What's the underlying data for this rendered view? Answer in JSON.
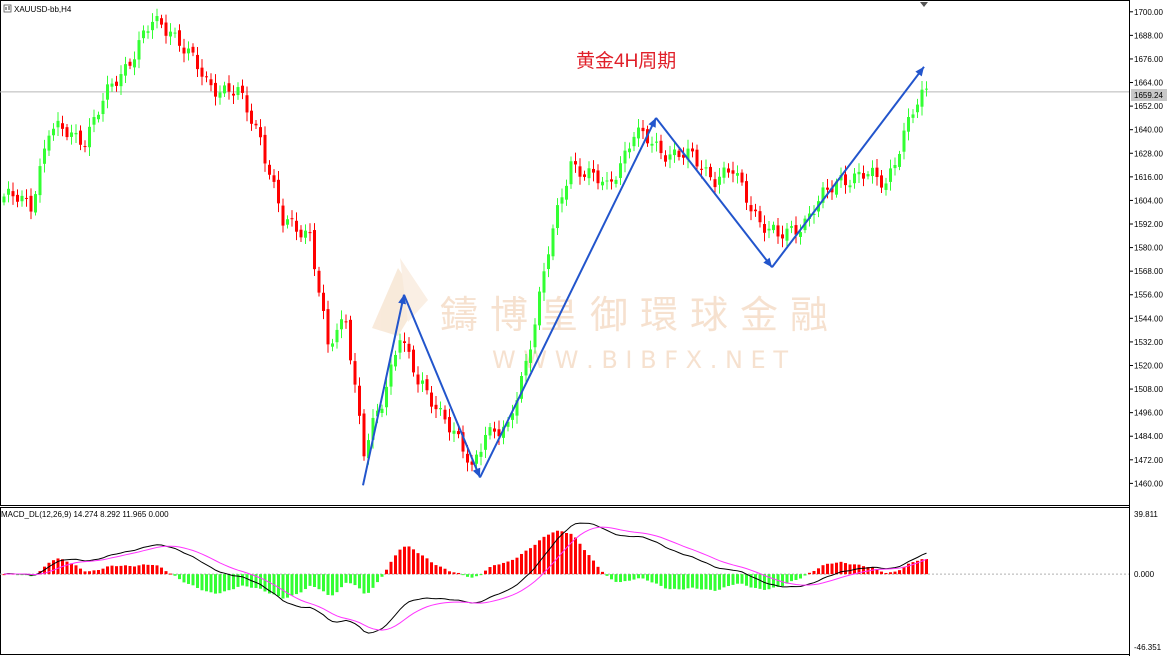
{
  "symbol_label": "XAUUSD-bb,H4",
  "annotation": "黄金4H周期",
  "watermark": {
    "cn": "鑄博皇御環球金融",
    "en": "W W W . B I B F X . N E T"
  },
  "current_price_label": "1659.24",
  "macd_header": "MACD_DL(12,26,9) 14.274 8.292 11.965 0.000",
  "colors": {
    "bull": "#33ff33",
    "bear": "#ff0000",
    "signal_line": "#ff33ff",
    "macd_line": "#000000",
    "arrow": "#2255cc",
    "annotation": "#e0202a",
    "watermark": "#efc9a8"
  },
  "chart_data": [
    {
      "type": "candlestick",
      "title": "XAUUSD-bb,H4",
      "ylim": [
        1449,
        1706
      ],
      "y_ticks": [
        "1700.00",
        "1688.00",
        "1676.00",
        "1664.00",
        "1652.00",
        "1640.00",
        "1628.00",
        "1616.00",
        "1604.00",
        "1592.00",
        "1580.00",
        "1568.00",
        "1556.00",
        "1544.00",
        "1532.00",
        "1520.00",
        "1508.00",
        "1496.00",
        "1484.00",
        "1472.00",
        "1460.00"
      ],
      "current_price": 1659.24,
      "candles": [],
      "annotation_arrows_points": [
        [
          1459,
          1556
        ],
        [
          1556,
          1463
        ],
        [
          1463,
          1646
        ],
        [
          1646,
          1570
        ],
        [
          1570,
          1672
        ]
      ]
    },
    {
      "type": "bar",
      "title": "MACD_DL(12,26,9) 14.274 8.292 11.965 0.000",
      "ylim": [
        -46.351,
        39.811
      ],
      "y_ticks": [
        "39.811",
        "0.000",
        "-46.351"
      ],
      "series": [
        {
          "name": "histogram",
          "values": []
        },
        {
          "name": "macd",
          "values": []
        },
        {
          "name": "signal",
          "values": []
        }
      ]
    }
  ]
}
